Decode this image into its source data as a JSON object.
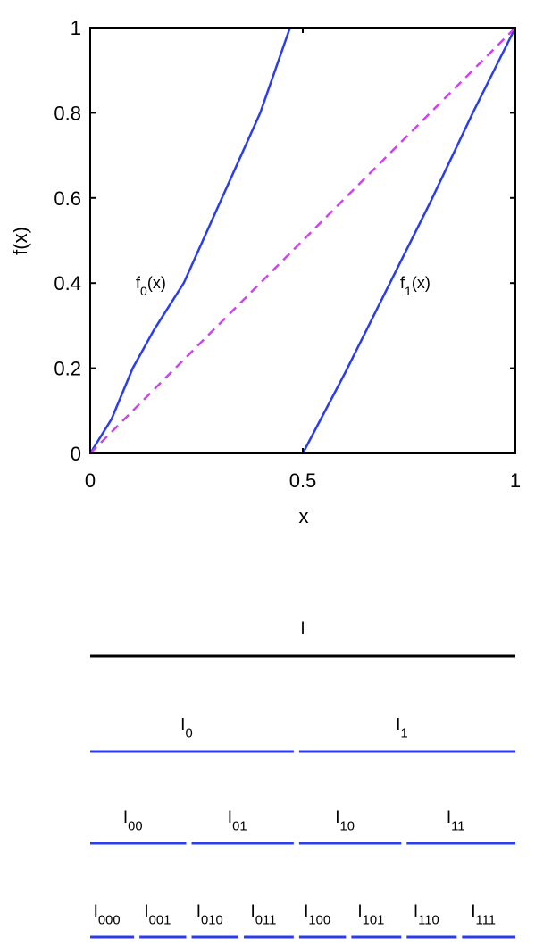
{
  "chart_data": {
    "type": "line",
    "xlabel": "x",
    "ylabel": "f(x)",
    "xlim": [
      0,
      1
    ],
    "ylim": [
      0,
      1
    ],
    "xticks": [
      0,
      0.5,
      1
    ],
    "yticks": [
      0,
      0.2,
      0.4,
      0.6,
      0.8,
      1
    ],
    "series": [
      {
        "color": "#2a3cf0",
        "x": [
          0,
          0.05,
          0.1,
          0.15,
          0.22,
          0.31,
          0.4,
          0.47
        ],
        "values": [
          0,
          0.08,
          0.2,
          0.29,
          0.4,
          0.6,
          0.8,
          1
        ]
      },
      {
        "color": "#2a3cf0",
        "x": [
          0.5,
          0.6,
          0.7,
          0.8,
          0.9,
          1
        ],
        "values": [
          0,
          0.19,
          0.39,
          0.59,
          0.8,
          1
        ]
      },
      {
        "color": "#cc44ee",
        "dashed": true,
        "x": [
          0,
          1
        ],
        "values": [
          0,
          1
        ]
      }
    ],
    "annotations": [
      {
        "text": "f",
        "sub": "0",
        "suffix": "(x)"
      },
      {
        "text": "f",
        "sub": "1",
        "suffix": "(x)"
      }
    ]
  },
  "intervals": {
    "levels": [
      {
        "color": "#000000",
        "segments": [
          {
            "base": "I"
          }
        ]
      },
      {
        "color": "#2a3cf0",
        "segments": [
          {
            "base": "I",
            "sub": "0"
          },
          {
            "base": "I",
            "sub": "1"
          }
        ]
      },
      {
        "color": "#2a3cf0",
        "segments": [
          {
            "base": "I",
            "sub": "00"
          },
          {
            "base": "I",
            "sub": "01"
          },
          {
            "base": "I",
            "sub": "10"
          },
          {
            "base": "I",
            "sub": "11"
          }
        ]
      },
      {
        "color": "#2a3cf0",
        "segments": [
          {
            "base": "I",
            "sub": "000"
          },
          {
            "base": "I",
            "sub": "001"
          },
          {
            "base": "I",
            "sub": "010"
          },
          {
            "base": "I",
            "sub": "011"
          },
          {
            "base": "I",
            "sub": "100"
          },
          {
            "base": "I",
            "sub": "101"
          },
          {
            "base": "I",
            "sub": "110"
          },
          {
            "base": "I",
            "sub": "111"
          }
        ]
      }
    ]
  }
}
